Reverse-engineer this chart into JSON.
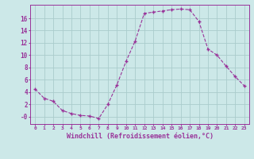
{
  "x": [
    0,
    1,
    2,
    3,
    4,
    5,
    6,
    7,
    8,
    9,
    10,
    11,
    12,
    13,
    14,
    15,
    16,
    17,
    18,
    19,
    20,
    21,
    22,
    23
  ],
  "y": [
    4.5,
    3.0,
    2.5,
    1.0,
    0.5,
    0.2,
    0.1,
    -0.3,
    2.0,
    5.2,
    9.0,
    12.3,
    16.8,
    17.0,
    17.2,
    17.4,
    17.5,
    17.4,
    15.5,
    11.0,
    10.0,
    8.2,
    6.5,
    5.0
  ],
  "line_color": "#993399",
  "marker": "+",
  "marker_size": 3,
  "marker_linewidth": 1.0,
  "bg_color": "#cce8e8",
  "grid_color": "#aacccc",
  "xlabel": "Windchill (Refroidissement éolien,°C)",
  "xlabel_fontsize": 6,
  "ytick_labels": [
    "-0",
    "2",
    "4",
    "6",
    "8",
    "10",
    "12",
    "14",
    "16"
  ],
  "ytick_values": [
    0,
    2,
    4,
    6,
    8,
    10,
    12,
    14,
    16
  ],
  "xticks": [
    0,
    1,
    2,
    3,
    4,
    5,
    6,
    7,
    8,
    9,
    10,
    11,
    12,
    13,
    14,
    15,
    16,
    17,
    18,
    19,
    20,
    21,
    22,
    23
  ],
  "ylim": [
    -1.2,
    18.2
  ],
  "xlim": [
    -0.5,
    23.5
  ]
}
